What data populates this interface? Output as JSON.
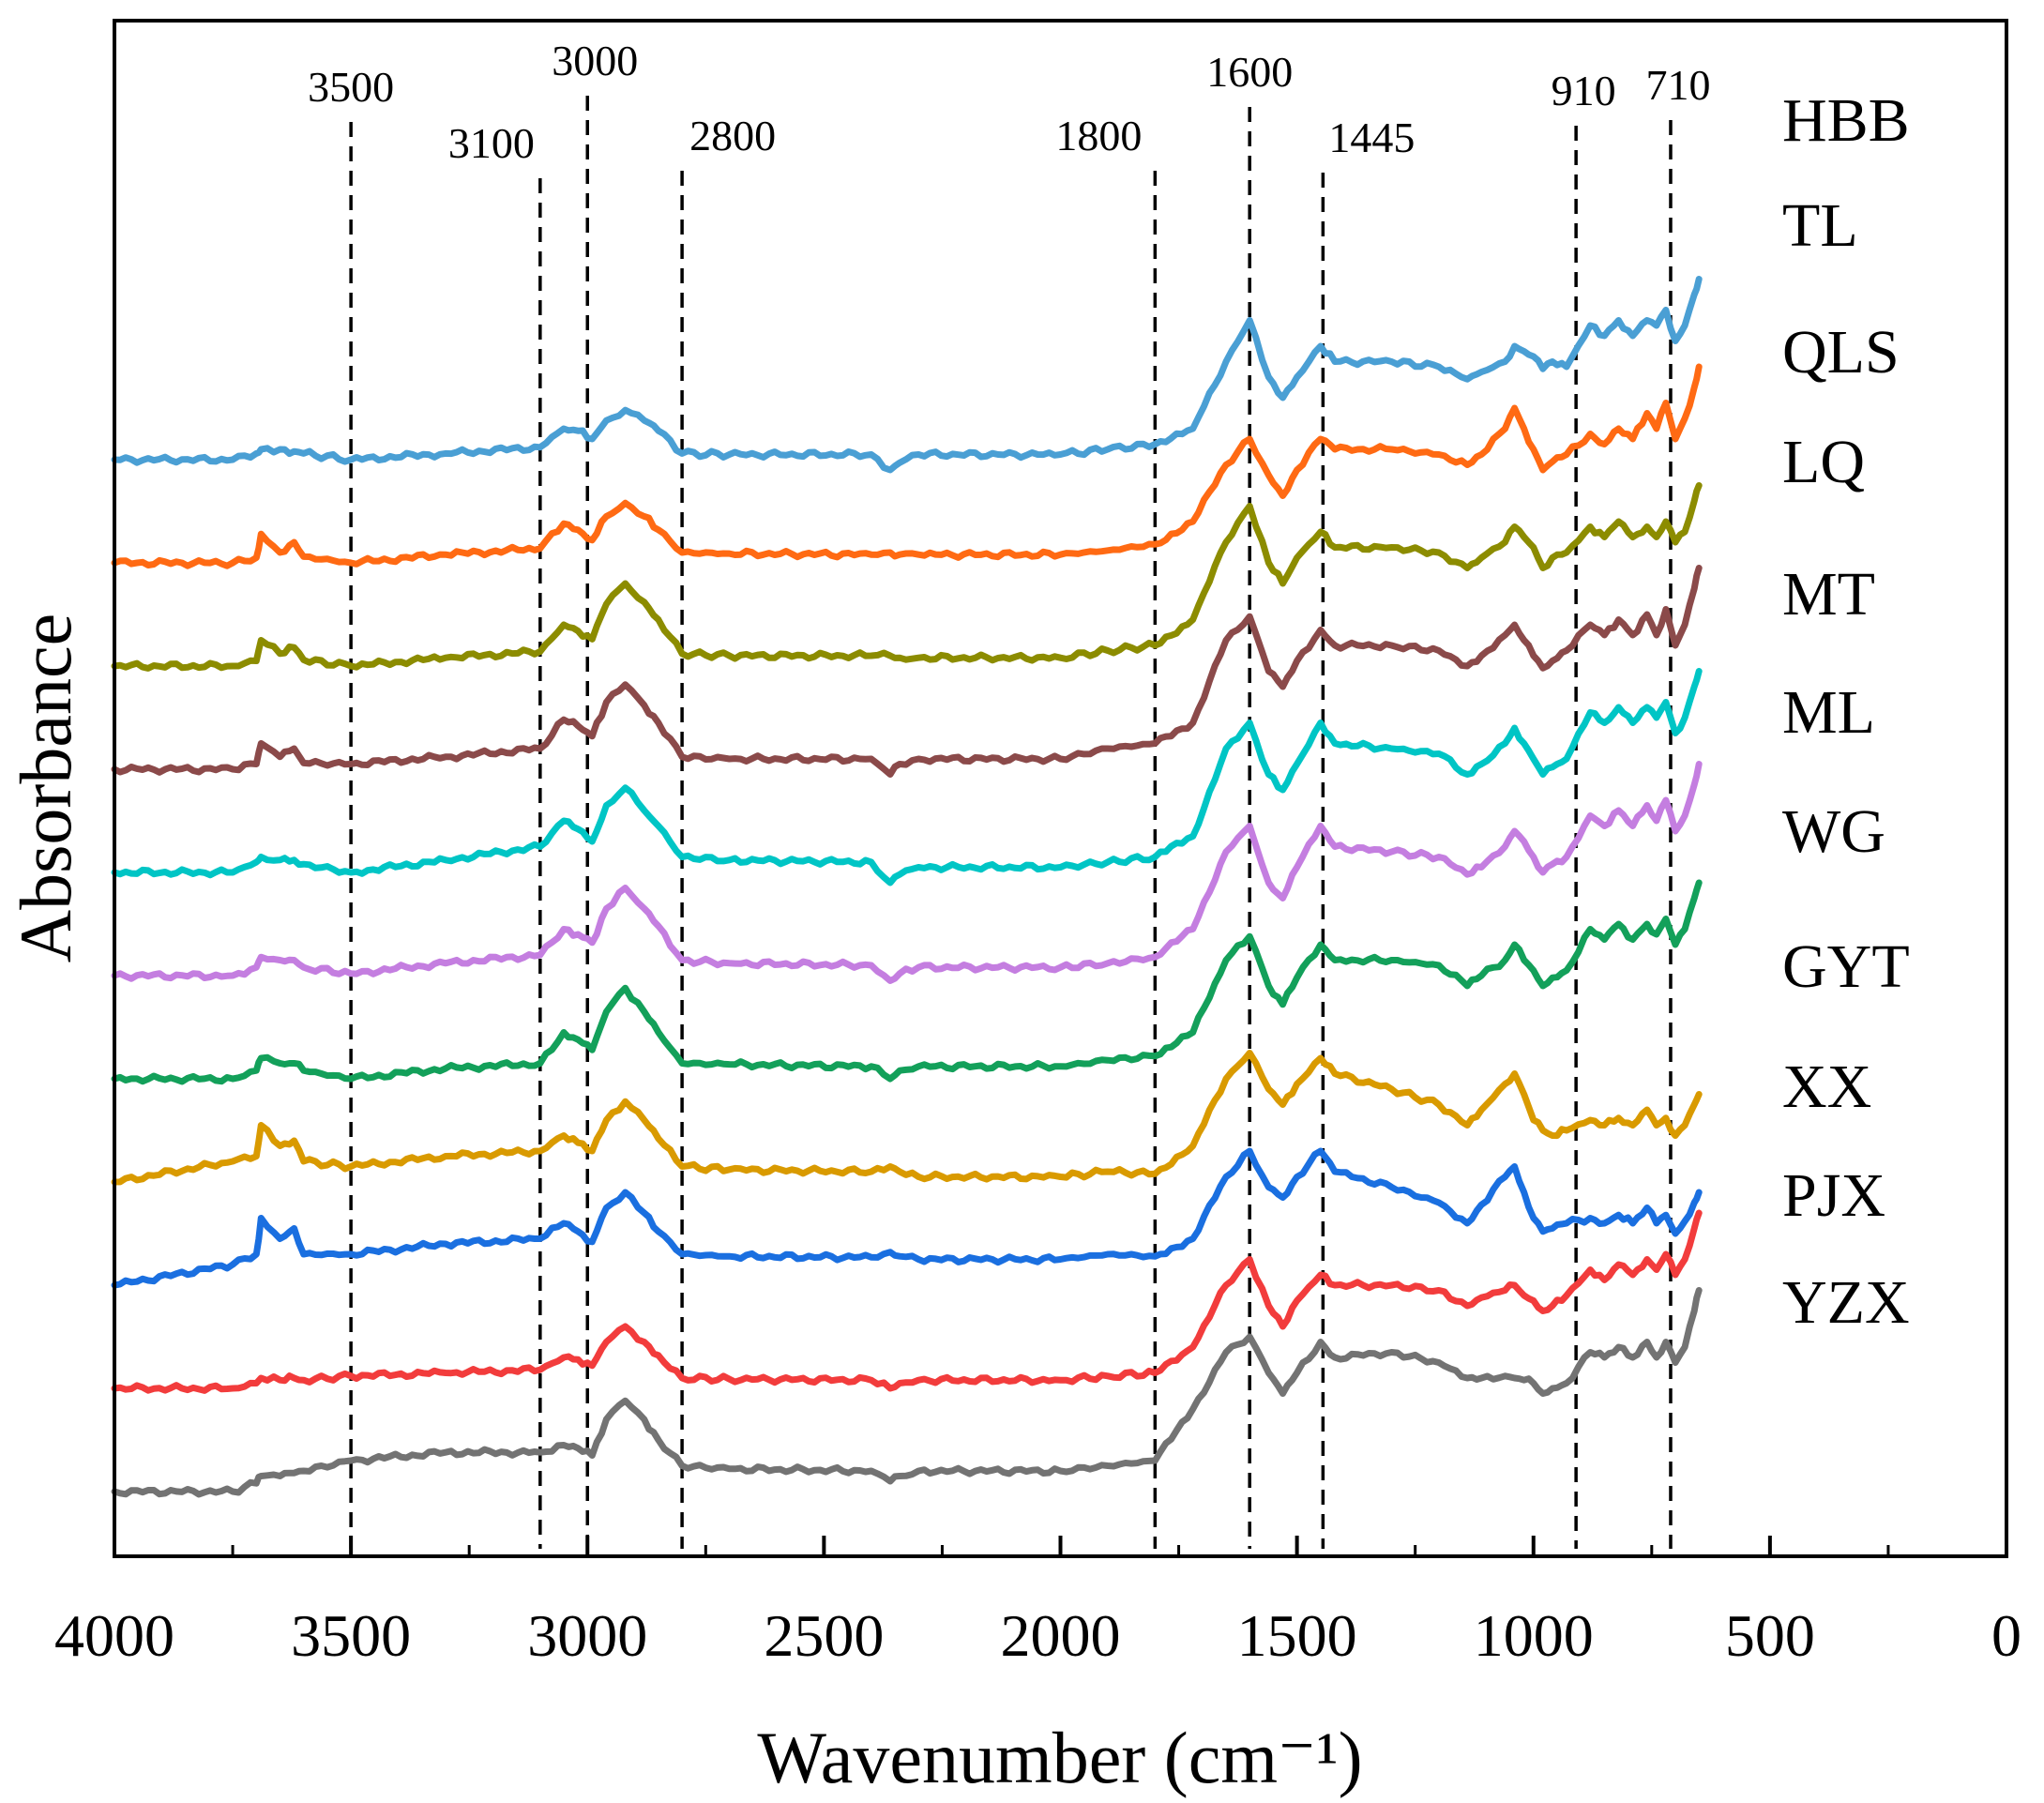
{
  "chart_data": {
    "type": "line",
    "title": "",
    "xlabel": "Wavenumber (cm⁻¹)",
    "ylabel": "Absorbance",
    "xlim": [
      4000,
      0
    ],
    "x_ticks": [
      4000,
      3500,
      3000,
      2500,
      2000,
      1500,
      1000,
      500,
      0
    ],
    "x_tick_labels": [
      "4000",
      "3500",
      "3000",
      "2500",
      "2000",
      "1500",
      "1000",
      "500",
      "0"
    ],
    "reference_lines": [
      {
        "x": 3500,
        "label": "3500"
      },
      {
        "x": 3100,
        "label": "3100"
      },
      {
        "x": 3000,
        "label": "3000"
      },
      {
        "x": 2800,
        "label": "2800"
      },
      {
        "x": 1800,
        "label": "1800"
      },
      {
        "x": 1600,
        "label": "1600"
      },
      {
        "x": 1445,
        "label": "1445"
      },
      {
        "x": 910,
        "label": "910"
      },
      {
        "x": 710,
        "label": "710"
      }
    ],
    "x_points": [
      4000,
      3750,
      3700,
      3690,
      3650,
      3620,
      3600,
      3500,
      3300,
      3100,
      3050,
      3020,
      2990,
      2960,
      2920,
      2880,
      2850,
      2800,
      2700,
      2400,
      2360,
      2340,
      2300,
      2000,
      1900,
      1800,
      1720,
      1650,
      1600,
      1560,
      1530,
      1500,
      1450,
      1420,
      1300,
      1200,
      1140,
      1110,
      1060,
      1040,
      1020,
      1000,
      980,
      960,
      930,
      880,
      850,
      820,
      790,
      760,
      740,
      720,
      700,
      680,
      660,
      650
    ],
    "y_note": "absorbance in arbitrary units; each series plotted with a vertical offset",
    "series": [
      {
        "name": "HBB",
        "color": "#4a9fd4",
        "offset": 9.0,
        "values": [
          0.0,
          0.0,
          0.06,
          0.1,
          0.1,
          0.08,
          0.06,
          0.0,
          0.06,
          0.12,
          0.3,
          0.28,
          0.2,
          0.38,
          0.48,
          0.38,
          0.28,
          0.06,
          0.05,
          0.05,
          -0.1,
          -0.03,
          0.05,
          0.05,
          0.1,
          0.15,
          0.3,
          0.95,
          1.35,
          0.8,
          0.6,
          0.8,
          1.1,
          0.95,
          0.95,
          0.9,
          0.78,
          0.85,
          0.95,
          1.1,
          1.05,
          1.0,
          0.88,
          0.95,
          0.9,
          1.3,
          1.2,
          1.35,
          1.2,
          1.35,
          1.3,
          1.45,
          1.15,
          1.3,
          1.6,
          1.75
        ]
      },
      {
        "name": "TL",
        "color": "#ff6a13",
        "offset": 8.0,
        "values": [
          0.0,
          0.0,
          0.05,
          0.28,
          0.1,
          0.2,
          0.06,
          0.0,
          0.08,
          0.14,
          0.38,
          0.32,
          0.22,
          0.45,
          0.58,
          0.45,
          0.32,
          0.1,
          0.09,
          0.08,
          0.1,
          0.08,
          0.08,
          0.08,
          0.12,
          0.18,
          0.4,
          0.95,
          1.2,
          0.85,
          0.65,
          0.9,
          1.2,
          1.1,
          1.1,
          1.05,
          0.95,
          1.05,
          1.3,
          1.5,
          1.3,
          1.1,
          0.9,
          0.98,
          1.05,
          1.25,
          1.15,
          1.3,
          1.2,
          1.45,
          1.3,
          1.55,
          1.2,
          1.4,
          1.7,
          1.9
        ]
      },
      {
        "name": "QLS",
        "color": "#8c8c00",
        "offset": 7.0,
        "values": [
          0.0,
          0.0,
          0.05,
          0.25,
          0.12,
          0.18,
          0.06,
          0.0,
          0.08,
          0.14,
          0.4,
          0.34,
          0.26,
          0.6,
          0.8,
          0.62,
          0.45,
          0.12,
          0.1,
          0.1,
          0.1,
          0.08,
          0.08,
          0.08,
          0.15,
          0.2,
          0.45,
          1.2,
          1.55,
          1.0,
          0.8,
          1.05,
          1.3,
          1.15,
          1.15,
          1.1,
          0.95,
          1.05,
          1.2,
          1.35,
          1.25,
          1.15,
          0.95,
          1.05,
          1.1,
          1.35,
          1.25,
          1.4,
          1.25,
          1.35,
          1.25,
          1.4,
          1.2,
          1.3,
          1.6,
          1.75
        ]
      },
      {
        "name": "LQ",
        "color": "#8b4a4a",
        "offset": 6.0,
        "values": [
          0.0,
          0.0,
          0.05,
          0.25,
          0.12,
          0.2,
          0.06,
          0.05,
          0.12,
          0.2,
          0.48,
          0.42,
          0.32,
          0.65,
          0.82,
          0.62,
          0.45,
          0.12,
          0.1,
          0.1,
          -0.05,
          0.05,
          0.1,
          0.1,
          0.2,
          0.25,
          0.45,
          1.25,
          1.48,
          0.95,
          0.8,
          1.05,
          1.35,
          1.2,
          1.2,
          1.15,
          1.0,
          1.1,
          1.3,
          1.4,
          1.25,
          1.1,
          0.98,
          1.05,
          1.15,
          1.4,
          1.3,
          1.45,
          1.3,
          1.5,
          1.3,
          1.55,
          1.2,
          1.4,
          1.75,
          1.95
        ]
      },
      {
        "name": "MT",
        "color": "#00c5c5",
        "offset": 5.0,
        "values": [
          0.0,
          0.0,
          0.1,
          0.15,
          0.12,
          0.12,
          0.08,
          0.0,
          0.12,
          0.25,
          0.5,
          0.42,
          0.3,
          0.65,
          0.82,
          0.6,
          0.45,
          0.15,
          0.12,
          0.1,
          -0.1,
          -0.02,
          0.05,
          0.05,
          0.1,
          0.15,
          0.35,
          1.2,
          1.45,
          0.95,
          0.8,
          1.05,
          1.45,
          1.25,
          1.2,
          1.15,
          0.95,
          1.05,
          1.25,
          1.4,
          1.25,
          1.1,
          0.95,
          1.02,
          1.1,
          1.55,
          1.45,
          1.6,
          1.45,
          1.6,
          1.5,
          1.65,
          1.35,
          1.5,
          1.8,
          1.95
        ]
      },
      {
        "name": "ML",
        "color": "#c47ee0",
        "offset": 4.0,
        "values": [
          0.0,
          0.0,
          0.08,
          0.18,
          0.15,
          0.15,
          0.08,
          0.02,
          0.12,
          0.2,
          0.45,
          0.4,
          0.32,
          0.65,
          0.85,
          0.65,
          0.48,
          0.15,
          0.12,
          0.1,
          -0.05,
          0.02,
          0.08,
          0.08,
          0.12,
          0.18,
          0.45,
          1.2,
          1.45,
          0.9,
          0.75,
          1.05,
          1.45,
          1.25,
          1.2,
          1.15,
          0.98,
          1.05,
          1.25,
          1.4,
          1.3,
          1.15,
          1.0,
          1.08,
          1.15,
          1.55,
          1.45,
          1.6,
          1.45,
          1.65,
          1.5,
          1.7,
          1.4,
          1.55,
          1.85,
          2.05
        ]
      },
      {
        "name": "WG",
        "color": "#13a05a",
        "offset": 3.0,
        "values": [
          0.0,
          0.0,
          0.08,
          0.2,
          0.15,
          0.15,
          0.08,
          0.0,
          0.1,
          0.15,
          0.45,
          0.38,
          0.28,
          0.65,
          0.88,
          0.65,
          0.45,
          0.15,
          0.14,
          0.12,
          0.0,
          0.08,
          0.12,
          0.12,
          0.18,
          0.22,
          0.45,
          1.15,
          1.38,
          0.9,
          0.72,
          0.98,
          1.3,
          1.15,
          1.15,
          1.1,
          0.9,
          1.0,
          1.15,
          1.3,
          1.15,
          1.05,
          0.9,
          0.98,
          1.05,
          1.45,
          1.35,
          1.5,
          1.35,
          1.5,
          1.4,
          1.55,
          1.3,
          1.45,
          1.75,
          1.9
        ]
      },
      {
        "name": "GYT",
        "color": "#d99a00",
        "offset": 2.0,
        "values": [
          0.0,
          0.2,
          0.25,
          0.55,
          0.35,
          0.4,
          0.2,
          0.15,
          0.25,
          0.3,
          0.45,
          0.38,
          0.3,
          0.6,
          0.78,
          0.6,
          0.42,
          0.15,
          0.12,
          0.1,
          0.15,
          0.1,
          0.05,
          0.05,
          0.1,
          0.08,
          0.35,
          1.0,
          1.25,
          0.9,
          0.75,
          0.95,
          1.2,
          1.05,
          0.9,
          0.75,
          0.55,
          0.7,
          0.95,
          1.05,
          0.85,
          0.6,
          0.5,
          0.45,
          0.5,
          0.6,
          0.55,
          0.62,
          0.55,
          0.7,
          0.55,
          0.62,
          0.45,
          0.55,
          0.75,
          0.85
        ]
      },
      {
        "name": "XX",
        "color": "#1a6fe0",
        "offset": 1.0,
        "values": [
          0.0,
          0.2,
          0.3,
          0.65,
          0.45,
          0.55,
          0.3,
          0.3,
          0.4,
          0.45,
          0.6,
          0.52,
          0.42,
          0.75,
          0.9,
          0.7,
          0.52,
          0.3,
          0.28,
          0.27,
          0.32,
          0.28,
          0.25,
          0.25,
          0.3,
          0.28,
          0.45,
          1.05,
          1.3,
          0.95,
          0.85,
          1.05,
          1.3,
          1.1,
          0.95,
          0.8,
          0.6,
          0.78,
          1.05,
          1.15,
          0.9,
          0.65,
          0.52,
          0.55,
          0.6,
          0.65,
          0.6,
          0.68,
          0.6,
          0.75,
          0.6,
          0.68,
          0.5,
          0.62,
          0.8,
          0.9
        ]
      },
      {
        "name": "PJX",
        "color": "#f23c3c",
        "offset": 0.0,
        "values": [
          0.0,
          0.0,
          0.05,
          0.1,
          0.08,
          0.1,
          0.08,
          0.12,
          0.15,
          0.18,
          0.3,
          0.28,
          0.22,
          0.45,
          0.6,
          0.45,
          0.32,
          0.1,
          0.09,
          0.08,
          0.0,
          0.05,
          0.08,
          0.08,
          0.12,
          0.15,
          0.4,
          1.0,
          1.25,
          0.8,
          0.6,
          0.85,
          1.1,
          1.0,
          1.0,
          0.95,
          0.8,
          0.88,
          0.95,
          1.0,
          0.9,
          0.85,
          0.75,
          0.8,
          0.9,
          1.15,
          1.05,
          1.2,
          1.1,
          1.25,
          1.15,
          1.3,
          1.1,
          1.25,
          1.55,
          1.7
        ]
      },
      {
        "name": "YZX",
        "color": "#737373",
        "offset": -1.0,
        "values": [
          0.0,
          0.0,
          0.08,
          0.15,
          0.15,
          0.18,
          0.2,
          0.3,
          0.38,
          0.38,
          0.45,
          0.42,
          0.35,
          0.7,
          0.88,
          0.7,
          0.5,
          0.25,
          0.22,
          0.2,
          0.1,
          0.15,
          0.2,
          0.2,
          0.25,
          0.3,
          0.8,
          1.35,
          1.5,
          1.15,
          0.95,
          1.15,
          1.45,
          1.3,
          1.35,
          1.25,
          1.1,
          1.1,
          1.12,
          1.1,
          1.08,
          1.05,
          0.95,
          1.0,
          1.05,
          1.35,
          1.3,
          1.4,
          1.3,
          1.45,
          1.3,
          1.45,
          1.25,
          1.4,
          1.75,
          1.95
        ]
      }
    ]
  }
}
